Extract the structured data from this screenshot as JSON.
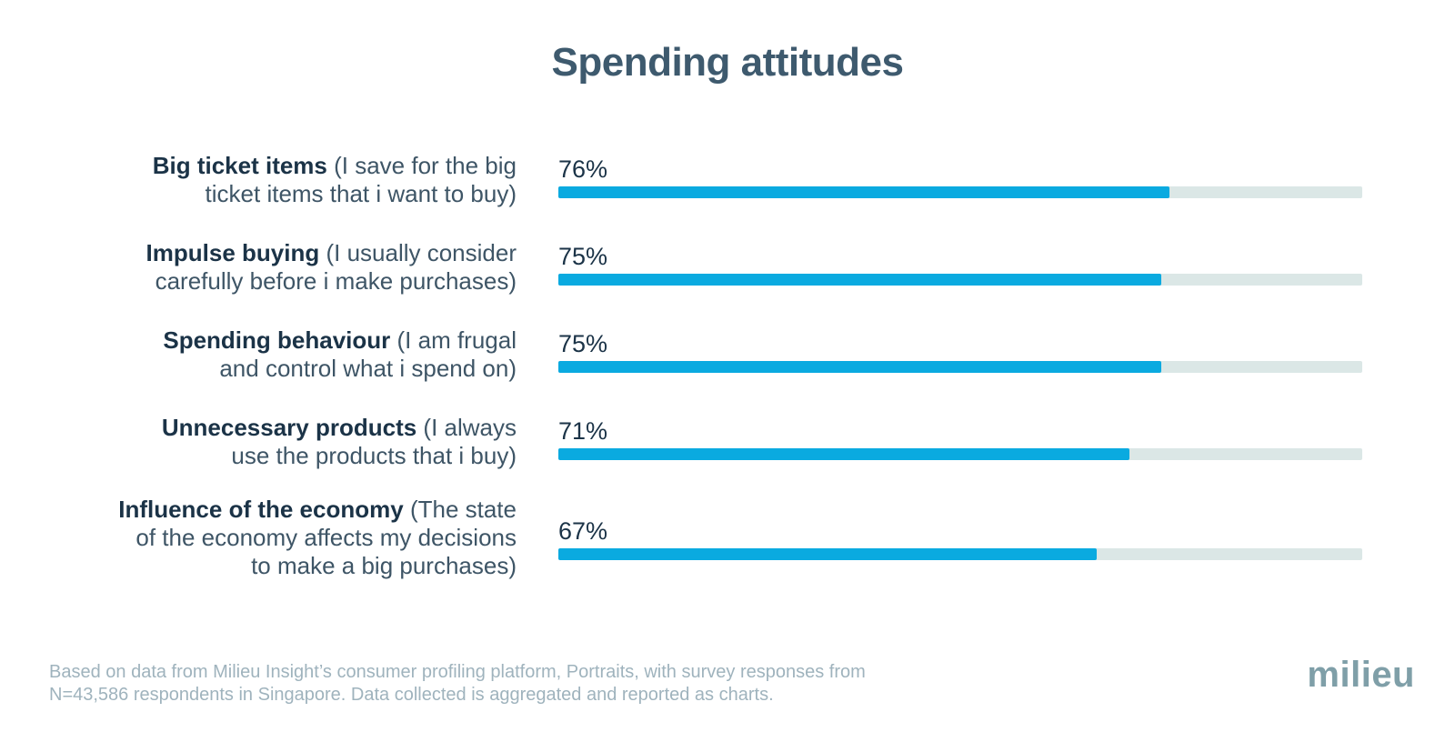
{
  "chart_data": {
    "type": "bar",
    "orientation": "horizontal",
    "title": "Spending attitudes",
    "xlim": [
      0,
      100
    ],
    "unit": "%",
    "categories": [
      {
        "bold": "Big ticket items",
        "detail": "(I save for the big ticket items that i want to buy)",
        "lines": [
          "<b>Big ticket items</b> (I save for the big",
          "ticket items that i want to buy)"
        ]
      },
      {
        "bold": "Impulse buying",
        "detail": "(I usually consider carefully before i make purchases)",
        "lines": [
          "<b>Impulse buying</b> (I usually consider",
          "carefully before i make purchases)"
        ]
      },
      {
        "bold": "Spending behaviour",
        "detail": "(I am frugal and control what i spend on)",
        "lines": [
          "<b>Spending behaviour</b> (I am frugal",
          "and control what i spend on)"
        ]
      },
      {
        "bold": "Unnecessary products",
        "detail": "(I always use the products that i buy)",
        "lines": [
          "<b>Unnecessary products</b> (I always",
          "use the products that i buy)"
        ]
      },
      {
        "bold": "Influence of the economy",
        "detail": "(The state of the economy affects my decisions to make a big purchases)",
        "lines": [
          "<b>Influence of the economy</b> (The state",
          "of the economy affects my decisions",
          "to make a big purchases)"
        ]
      }
    ],
    "values": [
      76,
      75,
      75,
      71,
      67
    ],
    "value_labels": [
      "76%",
      "75%",
      "75%",
      "71%",
      "67%"
    ],
    "colors": {
      "bar": "#0aaae0",
      "track": "#dbe7e6"
    }
  },
  "footnote": {
    "line1": "Based on data from Milieu Insight’s consumer profiling platform, Portraits, with survey responses from",
    "line2": "N=43,586 respondents in Singapore.  Data collected is aggregated and reported as charts."
  },
  "brand": {
    "logo_text": "milieu"
  }
}
